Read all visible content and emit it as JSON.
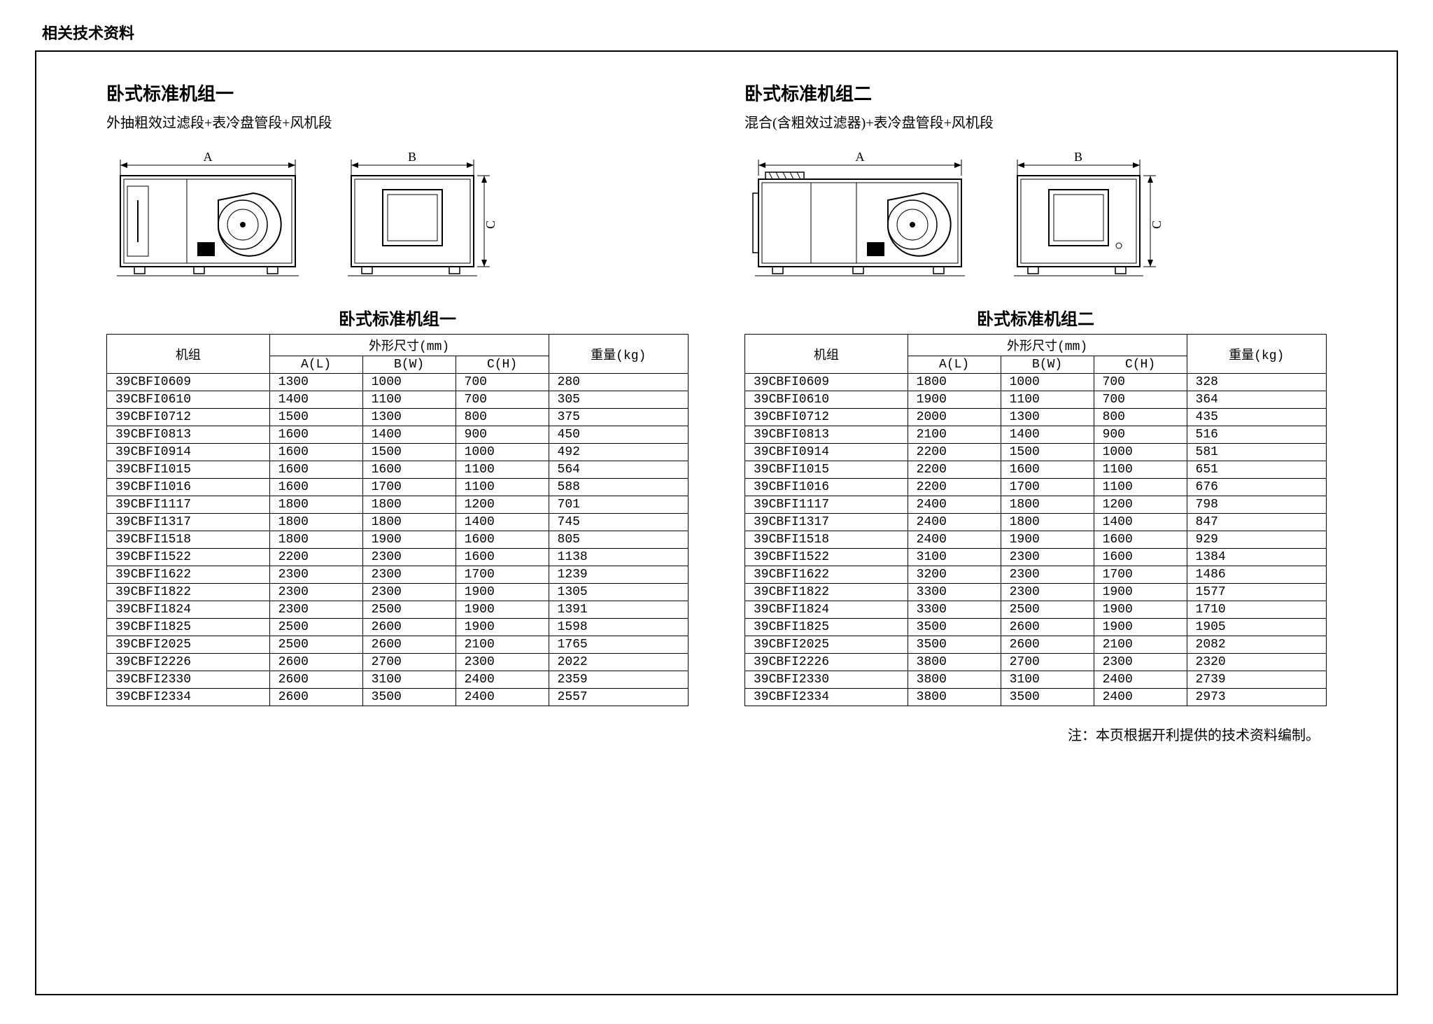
{
  "pageTitle": "相关技术资料",
  "footnote": "注：本页根据开利提供的技术资料编制。",
  "left": {
    "title": "卧式标准机组一",
    "subtitle": "外抽粗效过滤段+表冷盘管段+风机段",
    "tableTitle": "卧式标准机组一",
    "dimLabels": {
      "A": "A",
      "B": "B",
      "C": "C"
    },
    "headers": {
      "model": "机组",
      "dimGroup": "外形尺寸(mm)",
      "a": "A(L)",
      "b": "B(W)",
      "c": "C(H)",
      "weight": "重量(kg)"
    },
    "rows": [
      {
        "m": "39CBFI0609",
        "a": "1300",
        "b": "1000",
        "c": "700",
        "w": "280"
      },
      {
        "m": "39CBFI0610",
        "a": "1400",
        "b": "1100",
        "c": "700",
        "w": "305"
      },
      {
        "m": "39CBFI0712",
        "a": "1500",
        "b": "1300",
        "c": "800",
        "w": "375"
      },
      {
        "m": "39CBFI0813",
        "a": "1600",
        "b": "1400",
        "c": "900",
        "w": "450"
      },
      {
        "m": "39CBFI0914",
        "a": "1600",
        "b": "1500",
        "c": "1000",
        "w": "492"
      },
      {
        "m": "39CBFI1015",
        "a": "1600",
        "b": "1600",
        "c": "1100",
        "w": "564"
      },
      {
        "m": "39CBFI1016",
        "a": "1600",
        "b": "1700",
        "c": "1100",
        "w": "588"
      },
      {
        "m": "39CBFI1117",
        "a": "1800",
        "b": "1800",
        "c": "1200",
        "w": "701"
      },
      {
        "m": "39CBFI1317",
        "a": "1800",
        "b": "1800",
        "c": "1400",
        "w": "745"
      },
      {
        "m": "39CBFI1518",
        "a": "1800",
        "b": "1900",
        "c": "1600",
        "w": "805"
      },
      {
        "m": "39CBFI1522",
        "a": "2200",
        "b": "2300",
        "c": "1600",
        "w": "1138"
      },
      {
        "m": "39CBFI1622",
        "a": "2300",
        "b": "2300",
        "c": "1700",
        "w": "1239"
      },
      {
        "m": "39CBFI1822",
        "a": "2300",
        "b": "2300",
        "c": "1900",
        "w": "1305"
      },
      {
        "m": "39CBFI1824",
        "a": "2300",
        "b": "2500",
        "c": "1900",
        "w": "1391"
      },
      {
        "m": "39CBFI1825",
        "a": "2500",
        "b": "2600",
        "c": "1900",
        "w": "1598"
      },
      {
        "m": "39CBFI2025",
        "a": "2500",
        "b": "2600",
        "c": "2100",
        "w": "1765"
      },
      {
        "m": "39CBFI2226",
        "a": "2600",
        "b": "2700",
        "c": "2300",
        "w": "2022"
      },
      {
        "m": "39CBFI2330",
        "a": "2600",
        "b": "3100",
        "c": "2400",
        "w": "2359"
      },
      {
        "m": "39CBFI2334",
        "a": "2600",
        "b": "3500",
        "c": "2400",
        "w": "2557"
      }
    ]
  },
  "right": {
    "title": "卧式标准机组二",
    "subtitle": "混合(含粗效过滤器)+表冷盘管段+风机段",
    "tableTitle": "卧式标准机组二",
    "dimLabels": {
      "A": "A",
      "B": "B",
      "C": "C"
    },
    "headers": {
      "model": "机组",
      "dimGroup": "外形尺寸(mm)",
      "a": "A(L)",
      "b": "B(W)",
      "c": "C(H)",
      "weight": "重量(kg)"
    },
    "rows": [
      {
        "m": "39CBFI0609",
        "a": "1800",
        "b": "1000",
        "c": "700",
        "w": "328"
      },
      {
        "m": "39CBFI0610",
        "a": "1900",
        "b": "1100",
        "c": "700",
        "w": "364"
      },
      {
        "m": "39CBFI0712",
        "a": "2000",
        "b": "1300",
        "c": "800",
        "w": "435"
      },
      {
        "m": "39CBFI0813",
        "a": "2100",
        "b": "1400",
        "c": "900",
        "w": "516"
      },
      {
        "m": "39CBFI0914",
        "a": "2200",
        "b": "1500",
        "c": "1000",
        "w": "581"
      },
      {
        "m": "39CBFI1015",
        "a": "2200",
        "b": "1600",
        "c": "1100",
        "w": "651"
      },
      {
        "m": "39CBFI1016",
        "a": "2200",
        "b": "1700",
        "c": "1100",
        "w": "676"
      },
      {
        "m": "39CBFI1117",
        "a": "2400",
        "b": "1800",
        "c": "1200",
        "w": "798"
      },
      {
        "m": "39CBFI1317",
        "a": "2400",
        "b": "1800",
        "c": "1400",
        "w": "847"
      },
      {
        "m": "39CBFI1518",
        "a": "2400",
        "b": "1900",
        "c": "1600",
        "w": "929"
      },
      {
        "m": "39CBFI1522",
        "a": "3100",
        "b": "2300",
        "c": "1600",
        "w": "1384"
      },
      {
        "m": "39CBFI1622",
        "a": "3200",
        "b": "2300",
        "c": "1700",
        "w": "1486"
      },
      {
        "m": "39CBFI1822",
        "a": "3300",
        "b": "2300",
        "c": "1900",
        "w": "1577"
      },
      {
        "m": "39CBFI1824",
        "a": "3300",
        "b": "2500",
        "c": "1900",
        "w": "1710"
      },
      {
        "m": "39CBFI1825",
        "a": "3500",
        "b": "2600",
        "c": "1900",
        "w": "1905"
      },
      {
        "m": "39CBFI2025",
        "a": "3500",
        "b": "2600",
        "c": "2100",
        "w": "2082"
      },
      {
        "m": "39CBFI2226",
        "a": "3800",
        "b": "2700",
        "c": "2300",
        "w": "2320"
      },
      {
        "m": "39CBFI2330",
        "a": "3800",
        "b": "3100",
        "c": "2400",
        "w": "2739"
      },
      {
        "m": "39CBFI2334",
        "a": "3800",
        "b": "3500",
        "c": "2400",
        "w": "2973"
      }
    ]
  },
  "style": {
    "stroke": "#000000",
    "fill": "#ffffff",
    "strokeWidth": 1.5
  }
}
